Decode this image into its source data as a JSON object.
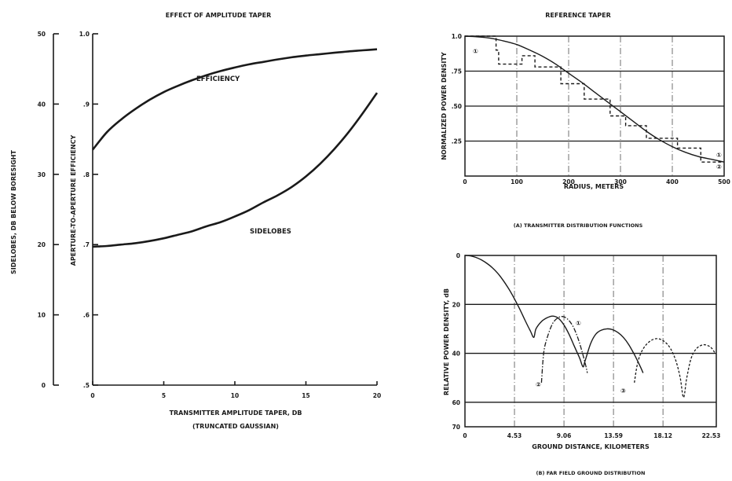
{
  "chart_data": [
    {
      "id": "left",
      "type": "line",
      "title": "EFFECT OF AMPLITUDE TAPER",
      "xlabel": "TRANSMITTER AMPLITUDE TAPER, DB",
      "xlabel2": "(TRUNCATED GAUSSIAN)",
      "ylabel": "APERTURE-TO-APERTURE EFFICIENCY",
      "ylabel_secondary": "SIDELOBES, DB BELOW BORESIGHT",
      "xlim": [
        0,
        20
      ],
      "ylim": [
        0.5,
        1.0
      ],
      "ylim_secondary": [
        0,
        50
      ],
      "x_ticks": [
        "0",
        "5",
        "10",
        "15",
        "20"
      ],
      "y_ticks": [
        "1.0",
        ".9",
        ".8",
        ".7",
        ".6",
        ".5"
      ],
      "y_ticks_secondary": [
        "50",
        "40",
        "30",
        "20",
        "10",
        "0"
      ],
      "grid": false,
      "series": [
        {
          "name": "EFFICIENCY",
          "axis": "primary",
          "x": [
            0,
            1,
            2,
            3,
            4,
            5,
            6,
            7,
            8,
            9,
            10,
            11,
            12,
            13,
            14,
            15,
            16,
            17,
            18,
            19,
            20
          ],
          "y": [
            0.835,
            0.86,
            0.878,
            0.893,
            0.906,
            0.917,
            0.926,
            0.934,
            0.941,
            0.947,
            0.952,
            0.9565,
            0.96,
            0.9635,
            0.9665,
            0.969,
            0.971,
            0.973,
            0.975,
            0.9765,
            0.978
          ]
        },
        {
          "name": "SIDELOBES",
          "axis": "secondary",
          "x": [
            0,
            1,
            2,
            3,
            4,
            5,
            6,
            7,
            8,
            9,
            10,
            11,
            12,
            13,
            14,
            15,
            16,
            17,
            18,
            19,
            20
          ],
          "y": [
            19.7,
            19.8,
            20.0,
            20.2,
            20.5,
            20.9,
            21.4,
            21.9,
            22.6,
            23.2,
            24.0,
            24.9,
            26.0,
            27.0,
            28.2,
            29.7,
            31.5,
            33.6,
            36.0,
            38.7,
            41.6
          ]
        }
      ],
      "annotations": [
        "EFFICIENCY",
        "SIDELOBES"
      ]
    },
    {
      "id": "top-right",
      "type": "line",
      "title": "REFERENCE TAPER",
      "xlabel": "RADIUS, METERS",
      "ylabel": "NORMALIZED POWER DENSITY",
      "caption": "(A) TRANSMITTER DISTRIBUTION FUNCTIONS",
      "xlim": [
        0,
        500
      ],
      "ylim": [
        0,
        1.0
      ],
      "x_ticks": [
        "0",
        "100",
        "200",
        "300",
        "400",
        "500"
      ],
      "y_ticks": [
        "1.0",
        ".75",
        ".50",
        ".25"
      ],
      "grid": true,
      "series": [
        {
          "name": "①",
          "style": "solid",
          "x": [
            0,
            25,
            50,
            75,
            100,
            125,
            150,
            175,
            200,
            225,
            250,
            275,
            300,
            325,
            350,
            375,
            400,
            425,
            450,
            475,
            500
          ],
          "y": [
            1.0,
            0.995,
            0.985,
            0.965,
            0.94,
            0.9,
            0.855,
            0.8,
            0.735,
            0.67,
            0.6,
            0.53,
            0.46,
            0.39,
            0.32,
            0.26,
            0.21,
            0.17,
            0.14,
            0.12,
            0.1
          ]
        },
        {
          "name": "②",
          "style": "dashed-step",
          "x": [
            0,
            60,
            60,
            65,
            65,
            110,
            110,
            135,
            135,
            185,
            185,
            230,
            230,
            280,
            280,
            310,
            310,
            350,
            350,
            410,
            410,
            455,
            455,
            500
          ],
          "y": [
            1.0,
            1.0,
            0.9,
            0.9,
            0.8,
            0.8,
            0.86,
            0.86,
            0.78,
            0.78,
            0.66,
            0.66,
            0.55,
            0.55,
            0.43,
            0.43,
            0.36,
            0.36,
            0.27,
            0.27,
            0.2,
            0.2,
            0.1,
            0.1
          ]
        }
      ],
      "markers": [
        "①",
        "①",
        "②"
      ]
    },
    {
      "id": "bottom-right",
      "type": "line",
      "xlabel": "GROUND DISTANCE, KILOMETERS",
      "ylabel": "RELATIVE POWER DENSITY, dB",
      "caption": "(B) FAR FIELD GROUND DISTRIBUTION",
      "xlim": [
        0,
        23
      ],
      "ylim": [
        0,
        70
      ],
      "y_inverted": true,
      "x_ticks": [
        "0",
        "4.53",
        "9.06",
        "13.59",
        "18.12",
        "22.53"
      ],
      "y_ticks": [
        "0",
        "20",
        "40",
        "60",
        "70"
      ],
      "grid": true,
      "series": [
        {
          "name": "①",
          "style": "solid",
          "x": [
            0,
            0.5,
            1.0,
            1.5,
            2.0,
            2.5,
            3.0,
            3.5,
            4.0,
            4.5,
            5.0,
            5.5,
            6.0,
            6.3,
            6.5,
            7.0,
            7.5,
            8.0,
            8.5,
            9.0,
            9.5,
            10.0,
            10.5,
            10.8,
            11.0,
            11.5,
            12.0,
            12.5,
            13.0,
            13.5,
            14.0,
            14.5,
            15.0,
            15.5,
            16.0,
            16.3
          ],
          "y": [
            0,
            0.2,
            0.8,
            1.8,
            3.2,
            5.0,
            7.3,
            10.2,
            13.6,
            17.5,
            21.8,
            26.5,
            31.0,
            33.5,
            30.0,
            27.0,
            25.5,
            24.8,
            25.5,
            28.0,
            32.0,
            37.0,
            42.0,
            45.5,
            43.0,
            36.0,
            32.0,
            30.5,
            30.0,
            30.3,
            31.5,
            33.5,
            36.5,
            40.5,
            45.0,
            48.0
          ]
        },
        {
          "name": "②",
          "style": "dash-dot",
          "x": [
            7.0,
            7.2,
            7.5,
            8.0,
            8.5,
            9.0,
            9.5,
            10.0,
            10.5,
            11.0,
            11.2
          ],
          "y": [
            52.0,
            40.0,
            34.0,
            28.0,
            25.5,
            25.0,
            26.5,
            30.0,
            36.0,
            44.0,
            48.0
          ]
        },
        {
          "name": "③",
          "style": "dashed",
          "x": [
            15.5,
            15.8,
            16.2,
            16.8,
            17.5,
            18.2,
            18.8,
            19.3,
            19.7,
            20.0,
            20.3,
            20.7,
            21.2,
            21.8,
            22.3,
            22.6,
            22.9
          ],
          "y": [
            52.0,
            44.0,
            39.0,
            35.5,
            34.0,
            35.0,
            38.0,
            43.0,
            50.0,
            58.0,
            50.0,
            42.0,
            38.0,
            36.5,
            37.0,
            38.0,
            40.0
          ]
        }
      ],
      "markers": [
        "①",
        "②",
        "③"
      ]
    }
  ]
}
